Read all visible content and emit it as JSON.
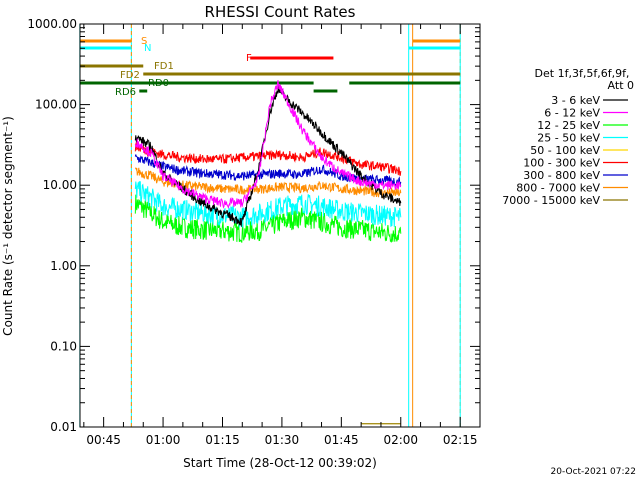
{
  "chart_data": {
    "type": "line",
    "title": "RHESSI Count Rates",
    "xlabel": "Start Time (28-Oct-12 00:39:02)",
    "ylabel": "Count Rate (s⁻¹ detector segment⁻¹)",
    "yscale": "log",
    "ylim": [
      0.01,
      1000
    ],
    "xlim": [
      "00:39:02",
      "02:20:00"
    ],
    "x_ticks": [
      "00:45",
      "01:00",
      "01:15",
      "01:30",
      "01:45",
      "02:00",
      "02:15"
    ],
    "y_ticks": [
      "0.01",
      "0.10",
      "1.00",
      "10.00",
      "100.00",
      "1000.00"
    ],
    "grid": false,
    "legend_position": "right",
    "detector_info": [
      "Det 1f,3f,5f,6f,9f,",
      "Att 0"
    ],
    "timestamp": "20-Oct-2021 07:22",
    "series": [
      {
        "name": "3 - 6 keV",
        "color": "#000000",
        "t": [
          "00:53",
          "00:57",
          "01:00",
          "01:05",
          "01:10",
          "01:15",
          "01:20",
          "01:24",
          "01:27",
          "01:29",
          "01:31",
          "01:35",
          "01:40",
          "01:45",
          "01:50",
          "01:55",
          "02:00"
        ],
        "y": [
          40,
          30,
          14,
          9,
          6,
          4.5,
          3.5,
          15,
          80,
          160,
          120,
          80,
          45,
          25,
          13,
          8,
          6
        ]
      },
      {
        "name": "6 - 12 keV",
        "color": "#ff00ff",
        "t": [
          "00:53",
          "00:57",
          "01:00",
          "01:05",
          "01:10",
          "01:15",
          "01:20",
          "01:24",
          "01:27",
          "01:29",
          "01:31",
          "01:35",
          "01:40",
          "01:45",
          "01:50",
          "01:55",
          "02:00"
        ],
        "y": [
          35,
          25,
          13,
          9,
          7,
          6,
          6,
          12,
          100,
          180,
          120,
          50,
          22,
          14,
          11,
          10,
          10
        ]
      },
      {
        "name": "12 - 25 keV",
        "color": "#00ff00",
        "t": [
          "00:53",
          "00:57",
          "01:00",
          "01:05",
          "01:10",
          "01:15",
          "01:20",
          "01:25",
          "01:30",
          "01:35",
          "01:40",
          "01:45",
          "01:50",
          "01:55",
          "02:00"
        ],
        "y": [
          6,
          4.5,
          3.5,
          3,
          2.8,
          2.7,
          2.6,
          2.8,
          3.5,
          4,
          3.5,
          3,
          2.8,
          2.6,
          2.5
        ]
      },
      {
        "name": "25 - 50 keV",
        "color": "#00ffff",
        "t": [
          "00:53",
          "00:57",
          "01:00",
          "01:05",
          "01:10",
          "01:15",
          "01:20",
          "01:25",
          "01:30",
          "01:35",
          "01:40",
          "01:45",
          "01:50",
          "01:55",
          "02:00"
        ],
        "y": [
          9,
          7,
          5.5,
          5,
          4.5,
          4.2,
          4,
          4.5,
          5.5,
          6,
          5.5,
          4.8,
          4.5,
          4.2,
          4
        ]
      },
      {
        "name": "50 - 100 keV",
        "color": "#ffd700",
        "t": [
          "01:50",
          "02:00"
        ],
        "y": [
          0.011,
          0.011
        ]
      },
      {
        "name": "100 - 300 keV",
        "color": "#ff0000",
        "t": [
          "00:53",
          "00:57",
          "01:00",
          "01:05",
          "01:10",
          "01:15",
          "01:20",
          "01:25",
          "01:30",
          "01:35",
          "01:40",
          "01:45",
          "01:50",
          "01:55",
          "02:00"
        ],
        "y": [
          30,
          26,
          24,
          22,
          21,
          21,
          22,
          23,
          24,
          22,
          26,
          22,
          18,
          17,
          15
        ]
      },
      {
        "name": "300 - 800 keV",
        "color": "#0000cc",
        "t": [
          "00:53",
          "00:57",
          "01:00",
          "01:05",
          "01:10",
          "01:15",
          "01:20",
          "01:25",
          "01:30",
          "01:35",
          "01:40",
          "01:45",
          "01:50",
          "01:55",
          "02:00"
        ],
        "y": [
          22,
          19,
          17,
          15,
          14,
          13.5,
          13,
          13.5,
          14,
          13.5,
          16,
          13,
          12,
          11.5,
          11
        ]
      },
      {
        "name": "800 - 7000 keV",
        "color": "#ff8c00",
        "t": [
          "00:53",
          "00:57",
          "01:00",
          "01:05",
          "01:10",
          "01:15",
          "01:20",
          "01:25",
          "01:30",
          "01:35",
          "01:40",
          "01:45",
          "01:50",
          "01:55",
          "02:00"
        ],
        "y": [
          15,
          13,
          11,
          10,
          9.5,
          9,
          8.8,
          9,
          9.5,
          9.2,
          10,
          9,
          8.5,
          8,
          8
        ]
      },
      {
        "name": "7000 - 15000 keV",
        "color": "#8b7500",
        "t": [
          "01:50",
          "02:00"
        ],
        "y": [
          0.011,
          0.011
        ]
      }
    ],
    "flags": [
      {
        "label": "S",
        "color": "#ff8c00",
        "segments": [
          [
            "00:39",
            "00:52"
          ],
          [
            "02:03",
            "02:15"
          ]
        ]
      },
      {
        "label": "N",
        "color": "#00ffff",
        "segments": [
          [
            "00:39",
            "00:52"
          ],
          [
            "02:02",
            "02:15"
          ]
        ]
      },
      {
        "label": "F",
        "color": "#ff0000",
        "segments": [
          [
            "01:22",
            "01:43"
          ]
        ]
      },
      {
        "label": "FD1",
        "color": "#8b7500",
        "segments": [
          [
            "00:39",
            "00:55"
          ]
        ]
      },
      {
        "label": "FD2",
        "color": "#8b7500",
        "segments": [
          [
            "00:55",
            "02:15"
          ]
        ]
      },
      {
        "label": "RD0",
        "color": "#006400",
        "segments": [
          [
            "00:39",
            "01:38"
          ],
          [
            "01:47",
            "02:15"
          ]
        ]
      },
      {
        "label": "RD6",
        "color": "#006400",
        "segments": [
          [
            "00:54",
            "00:56"
          ],
          [
            "01:38",
            "01:44"
          ]
        ]
      }
    ],
    "vlines": [
      {
        "t": "00:39",
        "color": "#00ffff"
      },
      {
        "t": "00:52",
        "color": "#00ffff"
      },
      {
        "t": "00:52",
        "color": "#ff8c00",
        "dashed": true
      },
      {
        "t": "02:02",
        "color": "#00ffff"
      },
      {
        "t": "02:03",
        "color": "#ff8c00"
      },
      {
        "t": "02:15",
        "color": "#ff8c00",
        "dashed": true
      },
      {
        "t": "02:15",
        "color": "#00ffff"
      }
    ]
  }
}
